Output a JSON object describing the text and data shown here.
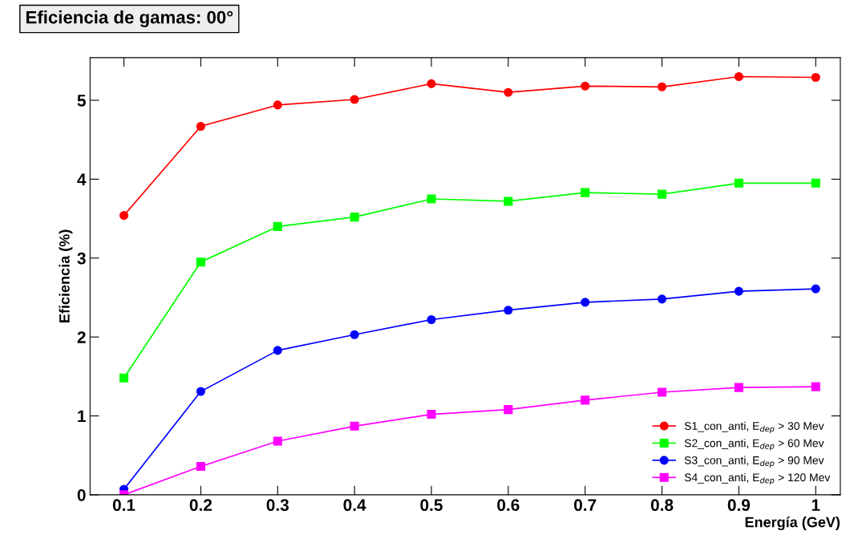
{
  "chart_data": {
    "type": "line",
    "title": "Eficiencia de gamas: 00°",
    "xlabel": "Energía (GeV)",
    "ylabel": "Eficiencia (%)",
    "x": [
      0.1,
      0.2,
      0.3,
      0.4,
      0.5,
      0.6,
      0.7,
      0.8,
      0.9,
      1.0
    ],
    "series": [
      {
        "name": "S1_con_anti, E$_{dep}$ > 30 Mev",
        "color": "#ff0000",
        "marker": "circle",
        "values": [
          3.54,
          4.67,
          4.94,
          5.01,
          5.21,
          5.1,
          5.18,
          5.17,
          5.3,
          5.29
        ]
      },
      {
        "name": "S2_con_anti, E$_{dep}$ > 60 Mev",
        "color": "#00ff00",
        "marker": "square",
        "values": [
          1.48,
          2.95,
          3.4,
          3.52,
          3.75,
          3.72,
          3.83,
          3.81,
          3.95,
          3.95
        ]
      },
      {
        "name": "S3_con_anti, E$_{dep}$ > 90 Mev",
        "color": "#0000ff",
        "marker": "circle",
        "values": [
          0.07,
          1.31,
          1.83,
          2.03,
          2.22,
          2.34,
          2.44,
          2.48,
          2.58,
          2.61
        ]
      },
      {
        "name": "S4_con_anti, E$_{dep}$ > 120 Mev",
        "color": "#ff00ff",
        "marker": "square",
        "values": [
          0.0,
          0.36,
          0.68,
          0.87,
          1.02,
          1.08,
          1.2,
          1.3,
          1.36,
          1.37
        ]
      }
    ],
    "xlim": [
      0.056,
      1.032
    ],
    "ylim": [
      0,
      5.54
    ],
    "xticks": [
      0.1,
      0.2,
      0.3,
      0.4,
      0.5,
      0.6,
      0.7,
      0.8,
      0.9,
      1
    ],
    "yticks": [
      0,
      1,
      2,
      3,
      4,
      5
    ],
    "grid": false,
    "legend": "bottom right",
    "line_style": "solid"
  }
}
